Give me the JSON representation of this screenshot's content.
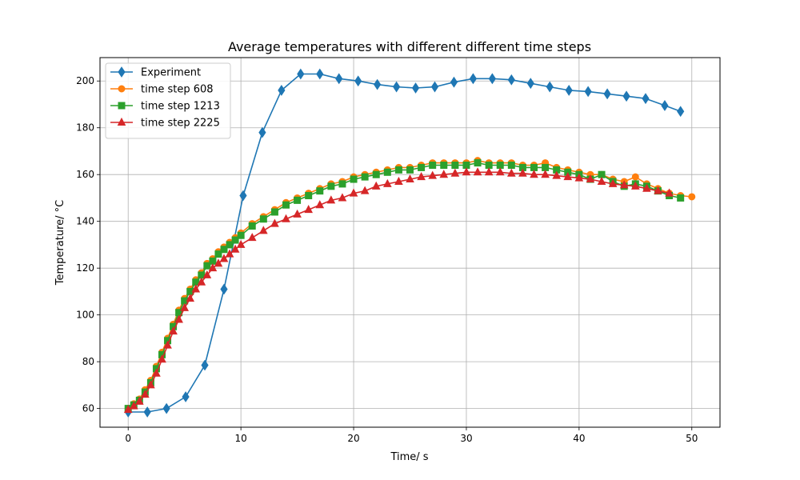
{
  "chart_data": {
    "type": "line",
    "title": "Average temperatures with different different time steps",
    "xlabel": "Time/ s",
    "ylabel": "Temperature/ °C",
    "xlim": [
      -2.5,
      52.5
    ],
    "ylim": [
      52,
      210
    ],
    "xticks": [
      0,
      10,
      20,
      30,
      40,
      50
    ],
    "yticks": [
      60,
      80,
      100,
      120,
      140,
      160,
      180,
      200
    ],
    "grid": true,
    "legend_position": "upper-left",
    "series": [
      {
        "name": "Experiment",
        "color": "#1f77b4",
        "marker": "diamond",
        "x": [
          0,
          1.7,
          3.4,
          5.1,
          6.8,
          8.5,
          10.2,
          11.9,
          13.6,
          15.3,
          17.0,
          18.7,
          20.4,
          22.1,
          23.8,
          25.5,
          27.2,
          28.9,
          30.6,
          32.3,
          34.0,
          35.7,
          37.4,
          39.1,
          40.8,
          42.5,
          44.2,
          45.9,
          47.6,
          49.0
        ],
        "y": [
          58.5,
          58.5,
          60,
          65,
          78.5,
          111,
          151,
          178,
          196,
          203,
          203,
          201,
          200,
          198.5,
          197.5,
          197,
          197.5,
          199.5,
          201,
          201,
          200.5,
          199,
          197.5,
          196,
          195.5,
          194.5,
          193.5,
          192.5,
          189.5,
          187
        ]
      },
      {
        "name": "time step 608",
        "color": "#ff7f0e",
        "marker": "circle",
        "x": [
          0,
          0.5,
          1,
          1.5,
          2,
          2.5,
          3,
          3.5,
          4,
          4.5,
          5,
          5.5,
          6,
          6.5,
          7,
          7.5,
          8,
          8.5,
          9,
          9.5,
          10,
          11,
          12,
          13,
          14,
          15,
          16,
          17,
          18,
          19,
          20,
          21,
          22,
          23,
          24,
          25,
          26,
          27,
          28,
          29,
          30,
          31,
          32,
          33,
          34,
          35,
          36,
          37,
          38,
          39,
          40,
          41,
          42,
          43,
          44,
          45,
          46,
          47,
          48,
          49,
          50
        ],
        "y": [
          60,
          62,
          64,
          68,
          72,
          78,
          84,
          90,
          96,
          102,
          107,
          111,
          115,
          118,
          122,
          124,
          127,
          129,
          131,
          133,
          135,
          139,
          142,
          145,
          148,
          150,
          152,
          154,
          156,
          157,
          159,
          160,
          161,
          162,
          163,
          163,
          164,
          165,
          165,
          165,
          165,
          166,
          165,
          165,
          165,
          164,
          164,
          165,
          163,
          162,
          161,
          160,
          160,
          158,
          157,
          159,
          156,
          154,
          152,
          151,
          150.5
        ]
      },
      {
        "name": "time step 1213",
        "color": "#2ca02c",
        "marker": "square",
        "x": [
          0,
          0.5,
          1,
          1.5,
          2,
          2.5,
          3,
          3.5,
          4,
          4.5,
          5,
          5.5,
          6,
          6.5,
          7,
          7.5,
          8,
          8.5,
          9,
          9.5,
          10,
          11,
          12,
          13,
          14,
          15,
          16,
          17,
          18,
          19,
          20,
          21,
          22,
          23,
          24,
          25,
          26,
          27,
          28,
          29,
          30,
          31,
          32,
          33,
          34,
          35,
          36,
          37,
          38,
          39,
          40,
          41,
          42,
          43,
          44,
          45,
          46,
          47,
          48,
          49
        ],
        "y": [
          60,
          61.5,
          63.5,
          67,
          71,
          77,
          83,
          89,
          95,
          101,
          106,
          110,
          114,
          117,
          121,
          123,
          126,
          128,
          130,
          132,
          134,
          138,
          141,
          144,
          147,
          149,
          151,
          153,
          155,
          156,
          158,
          159,
          160,
          161,
          162,
          162,
          163,
          164,
          164,
          164,
          164,
          165,
          164,
          164,
          164,
          163,
          163,
          163,
          162,
          161,
          160,
          158,
          160,
          157,
          155,
          156,
          155,
          153,
          151,
          150
        ]
      },
      {
        "name": "time step 2225",
        "color": "#d62728",
        "marker": "triangle",
        "x": [
          0,
          0.5,
          1,
          1.5,
          2,
          2.5,
          3,
          3.5,
          4,
          4.5,
          5,
          5.5,
          6,
          6.5,
          7,
          7.5,
          8,
          8.5,
          9,
          9.5,
          10,
          11,
          12,
          13,
          14,
          15,
          16,
          17,
          18,
          19,
          20,
          21,
          22,
          23,
          24,
          25,
          26,
          27,
          28,
          29,
          30,
          31,
          32,
          33,
          34,
          35,
          36,
          37,
          38,
          39,
          40,
          41,
          42,
          43,
          44,
          45,
          46,
          47,
          48
        ],
        "y": [
          59.5,
          61,
          63,
          66,
          70,
          75,
          81,
          87,
          93,
          98,
          103,
          107,
          111,
          114,
          117,
          120,
          122,
          124,
          126,
          128,
          130,
          133,
          136,
          139,
          141,
          143,
          145,
          147,
          149,
          150,
          152,
          153,
          155,
          156,
          157,
          158,
          159,
          159.5,
          160,
          160.5,
          161,
          161,
          161,
          161,
          160.5,
          160.5,
          160,
          160,
          159.5,
          159,
          158.5,
          158,
          157,
          156,
          155.5,
          155,
          154,
          153,
          152
        ]
      }
    ]
  }
}
